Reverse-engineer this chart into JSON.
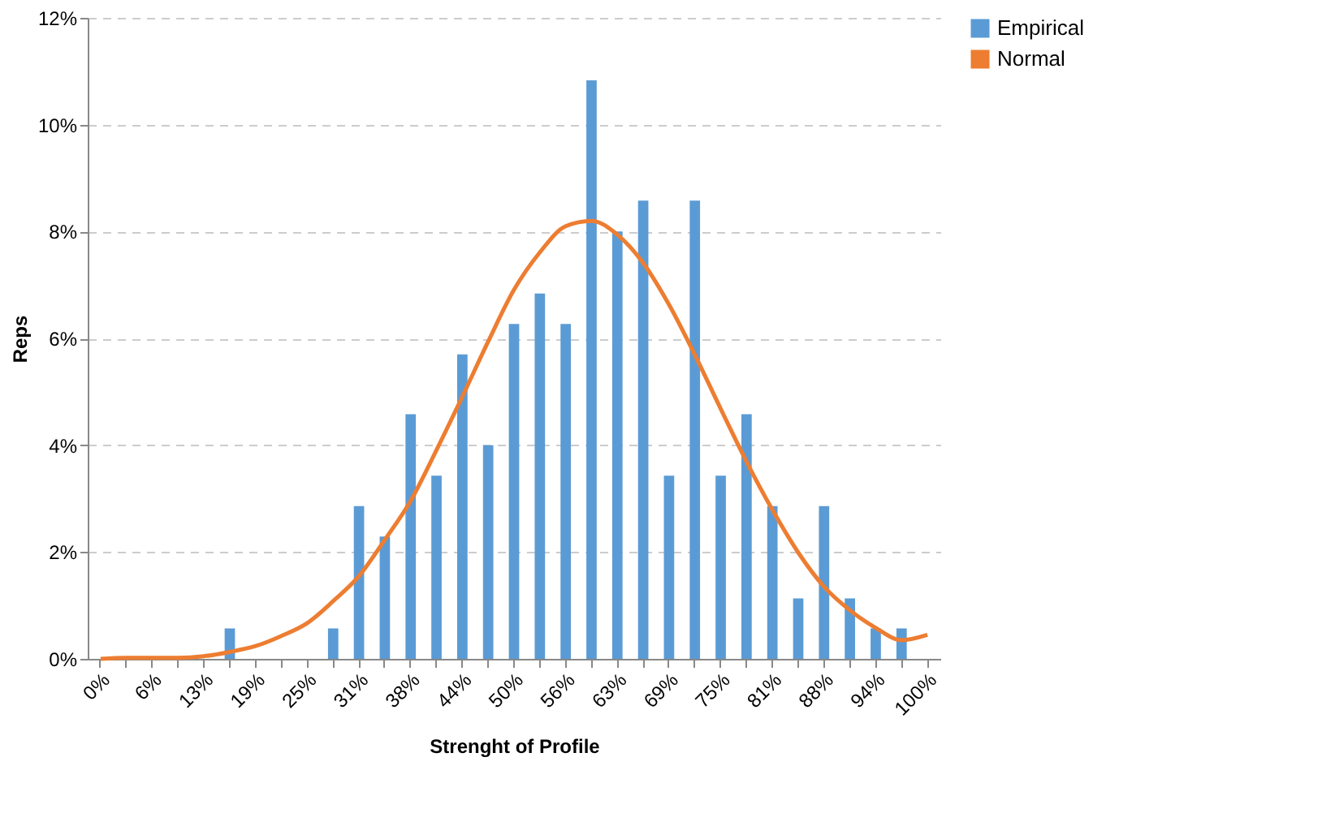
{
  "chart_data": {
    "type": "bar",
    "xlabel": "Strenght of Profile",
    "ylabel": "Reps",
    "categories": [
      "0%",
      null,
      "6%",
      null,
      "13%",
      null,
      "19%",
      null,
      "25%",
      null,
      "31%",
      null,
      "38%",
      null,
      "44%",
      null,
      "50%",
      null,
      "56%",
      null,
      "63%",
      null,
      "69%",
      null,
      "75%",
      null,
      "81%",
      null,
      "88%",
      null,
      "94%",
      null,
      "100%"
    ],
    "series": [
      {
        "name": "Empirical",
        "color": "#5b9bd5",
        "values": [
          0,
          0,
          0,
          0,
          0,
          0.57,
          0,
          0,
          0,
          0.57,
          2.86,
          2.29,
          4.58,
          3.43,
          5.7,
          4.0,
          6.27,
          6.84,
          6.27,
          10.83,
          8.0,
          8.58,
          3.43,
          8.58,
          3.43,
          4.58,
          2.86,
          1.13,
          2.86,
          1.13,
          0.57,
          0.57,
          0
        ]
      },
      {
        "name": "Normal",
        "type": "line",
        "color": "#ed7d31",
        "values": [
          0,
          0.02,
          0.02,
          0.02,
          0.05,
          0.13,
          0.24,
          0.43,
          0.67,
          1.08,
          1.55,
          2.23,
          2.96,
          3.91,
          4.91,
          5.94,
          6.91,
          7.61,
          8.1,
          8.2,
          7.94,
          7.41,
          6.63,
          5.69,
          4.68,
          3.69,
          2.79,
          1.99,
          1.35,
          0.91,
          0.58,
          0.35,
          0.45
        ]
      }
    ],
    "ylim": [
      0,
      12
    ],
    "yticks": [
      {
        "value": 0,
        "label": "0%"
      },
      {
        "value": 2,
        "label": "2%"
      },
      {
        "value": 4,
        "label": "4%"
      },
      {
        "value": 6,
        "label": "6%"
      },
      {
        "value": 8,
        "label": "8%"
      },
      {
        "value": 10,
        "label": "10%"
      },
      {
        "value": 12,
        "label": "12%"
      }
    ],
    "grid": "y",
    "legend": "right"
  }
}
